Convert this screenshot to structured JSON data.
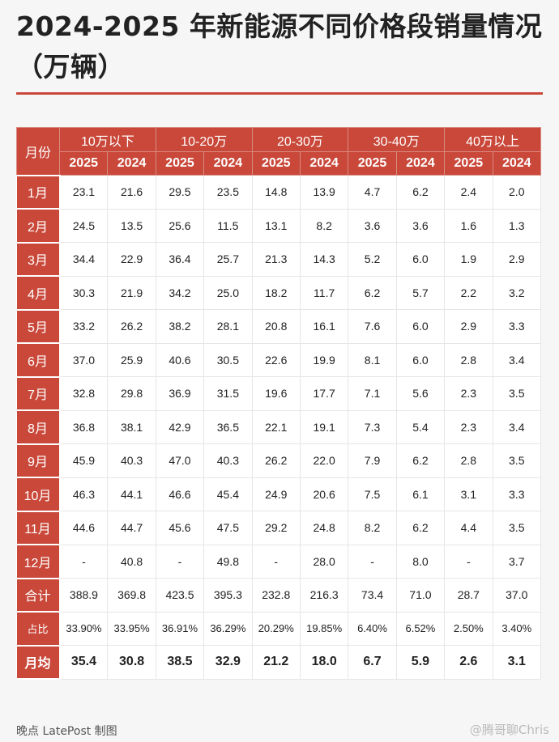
{
  "title": "2024-2025 年新能源不同价格段销量情况（万辆）",
  "header": {
    "month_label": "月份",
    "groups": [
      "10万以下",
      "10-20万",
      "20-30万",
      "30-40万",
      "40万以上"
    ],
    "years": [
      "2025",
      "2024"
    ]
  },
  "rows": [
    {
      "label": "1月",
      "values": [
        "23.1",
        "21.6",
        "29.5",
        "23.5",
        "14.8",
        "13.9",
        "4.7",
        "6.2",
        "2.4",
        "2.0"
      ]
    },
    {
      "label": "2月",
      "values": [
        "24.5",
        "13.5",
        "25.6",
        "11.5",
        "13.1",
        "8.2",
        "3.6",
        "3.6",
        "1.6",
        "1.3"
      ]
    },
    {
      "label": "3月",
      "values": [
        "34.4",
        "22.9",
        "36.4",
        "25.7",
        "21.3",
        "14.3",
        "5.2",
        "6.0",
        "1.9",
        "2.9"
      ]
    },
    {
      "label": "4月",
      "values": [
        "30.3",
        "21.9",
        "34.2",
        "25.0",
        "18.2",
        "11.7",
        "6.2",
        "5.7",
        "2.2",
        "3.2"
      ]
    },
    {
      "label": "5月",
      "values": [
        "33.2",
        "26.2",
        "38.2",
        "28.1",
        "20.8",
        "16.1",
        "7.6",
        "6.0",
        "2.9",
        "3.3"
      ]
    },
    {
      "label": "6月",
      "values": [
        "37.0",
        "25.9",
        "40.6",
        "30.5",
        "22.6",
        "19.9",
        "8.1",
        "6.0",
        "2.8",
        "3.4"
      ]
    },
    {
      "label": "7月",
      "values": [
        "32.8",
        "29.8",
        "36.9",
        "31.5",
        "19.6",
        "17.7",
        "7.1",
        "5.6",
        "2.3",
        "3.5"
      ]
    },
    {
      "label": "8月",
      "values": [
        "36.8",
        "38.1",
        "42.9",
        "36.5",
        "22.1",
        "19.1",
        "7.3",
        "5.4",
        "2.3",
        "3.4"
      ]
    },
    {
      "label": "9月",
      "values": [
        "45.9",
        "40.3",
        "47.0",
        "40.3",
        "26.2",
        "22.0",
        "7.9",
        "6.2",
        "2.8",
        "3.5"
      ]
    },
    {
      "label": "10月",
      "values": [
        "46.3",
        "44.1",
        "46.6",
        "45.4",
        "24.9",
        "20.6",
        "7.5",
        "6.1",
        "3.1",
        "3.3"
      ]
    },
    {
      "label": "11月",
      "values": [
        "44.6",
        "44.7",
        "45.6",
        "47.5",
        "29.2",
        "24.8",
        "8.2",
        "6.2",
        "4.4",
        "3.5"
      ]
    },
    {
      "label": "12月",
      "values": [
        "-",
        "40.8",
        "-",
        "49.8",
        "-",
        "28.0",
        "-",
        "8.0",
        "-",
        "3.7"
      ]
    },
    {
      "label": "合计",
      "values": [
        "388.9",
        "369.8",
        "423.5",
        "395.3",
        "232.8",
        "216.3",
        "73.4",
        "71.0",
        "28.7",
        "37.0"
      ]
    },
    {
      "label": "占比",
      "values": [
        "33.90%",
        "33.95%",
        "36.91%",
        "36.29%",
        "20.29%",
        "19.85%",
        "6.40%",
        "6.52%",
        "2.50%",
        "3.40%"
      ]
    },
    {
      "label": "月均",
      "values": [
        "35.4",
        "30.8",
        "38.5",
        "32.9",
        "21.2",
        "18.0",
        "6.7",
        "5.9",
        "2.6",
        "3.1"
      ]
    }
  ],
  "footer": "晚点 LatePost 制图",
  "watermark": "@腾哥聊Chris",
  "colors": {
    "accent": "#c9483a"
  }
}
